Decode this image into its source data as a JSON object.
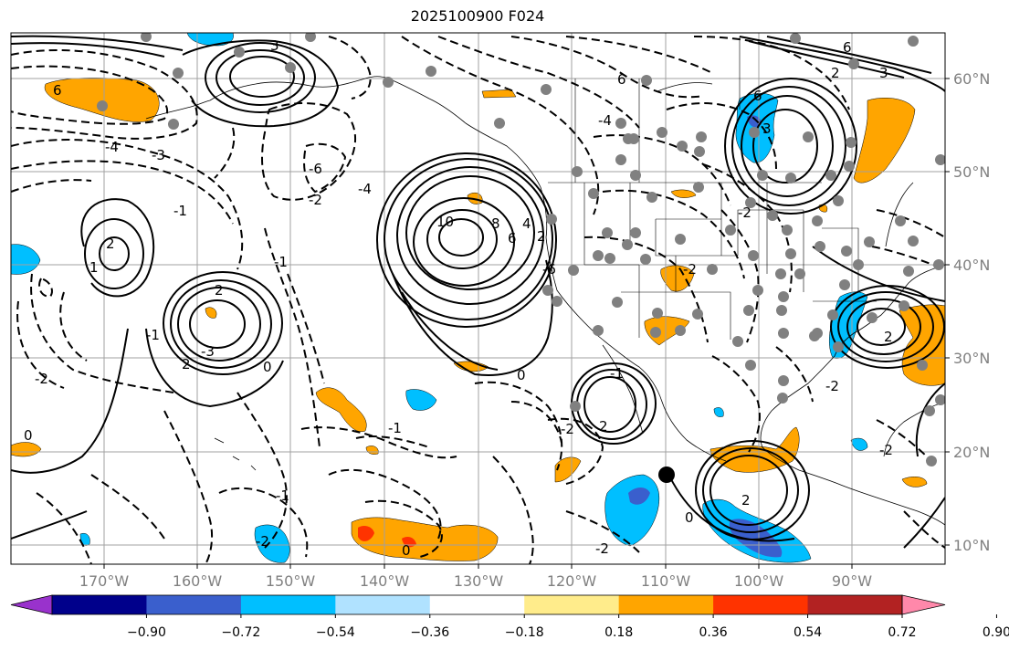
{
  "title": "2025100900 F024",
  "lat_labels": [
    "60°N",
    "50°N",
    "40°N",
    "30°N",
    "20°N",
    "10°N"
  ],
  "lon_labels": [
    "170°W",
    "160°W",
    "150°W",
    "140°W",
    "130°W",
    "120°W",
    "110°W",
    "100°W",
    "90°W"
  ],
  "colorbar": {
    "tick_labels": [
      "−0.90",
      "−0.72",
      "−0.54",
      "−0.36",
      "−0.18",
      "0.18",
      "0.36",
      "0.54",
      "0.72",
      "0.90"
    ],
    "colors": [
      "#9932CC",
      "#00008B",
      "#3A5FCD",
      "#00BFFF",
      "#B0E2FF",
      "#FFFFFF",
      "#FFEC8B",
      "#FFA500",
      "#FF3300",
      "#B22222",
      "#FF88AA"
    ]
  },
  "contour_labels": [
    "6",
    "3",
    "6",
    "3",
    "-4",
    "-6",
    "-4",
    "-3",
    "6",
    "-4",
    "10",
    "8",
    "6",
    "4",
    "2",
    "1",
    "-1",
    "2",
    "-1",
    "-2",
    "2",
    "-1",
    "2",
    "-3",
    "-2",
    "0",
    "0",
    "-1",
    "-2",
    "0",
    "-6",
    "-2",
    "6",
    "3",
    "2",
    "-2",
    "-1",
    "0",
    "-2",
    "-2",
    "2",
    "2",
    "0",
    "-2",
    "-1",
    "-2",
    "2"
  ],
  "map_features": {
    "shading": "surface-anomaly",
    "station_marker": "black-circle"
  }
}
